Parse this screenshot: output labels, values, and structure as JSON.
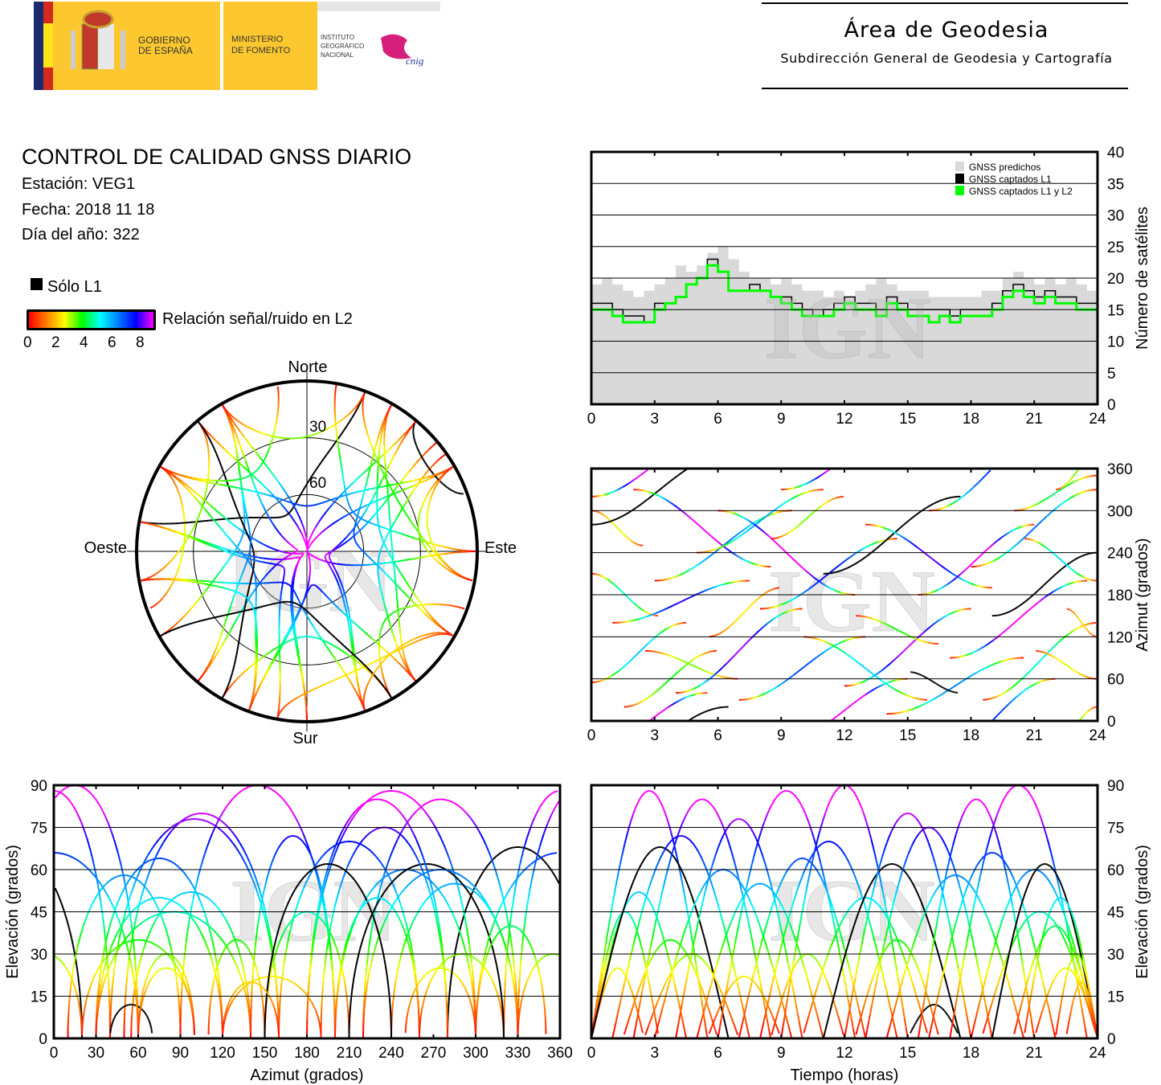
{
  "header": {
    "logo": {
      "gov_line1": "GOBIERNO",
      "gov_line2": "DE ESPAÑA",
      "min_line1": "MINISTERIO",
      "min_line2": "DE FOMENTO",
      "ign_line1": "INSTITUTO",
      "ign_line2": "GEOGRÁFICO",
      "ign_line3": "NACIONAL",
      "cnig": "cnig"
    },
    "area_title": "Área de Geodesia",
    "area_subtitle": "Subdirección General de Geodesia y Cartografía"
  },
  "report": {
    "title": "CONTROL DE CALIDAD GNSS DIARIO",
    "station": "Estación: VEG1",
    "date": "Fecha: 2018 11 18",
    "doy": "Día del año: 322",
    "l1_only_label": "Sólo L1",
    "snr_label": "Relación señal/ruido en L2",
    "snr_ticks": [
      "0",
      "2",
      "4",
      "6",
      "8"
    ],
    "colors": {
      "l1_only": "#000000",
      "snr_scale": [
        "#ff0000",
        "#ff8000",
        "#ffff00",
        "#00ff00",
        "#00ffff",
        "#0080ff",
        "#0000ff",
        "#ff00ff"
      ]
    }
  },
  "watermark": "IGN",
  "chart_data": [
    {
      "id": "satellite-count",
      "type": "area",
      "ylabel": "Número de satélites",
      "ylim": [
        0,
        40
      ],
      "xlim": [
        0,
        24
      ],
      "yticks": [
        "0",
        "5",
        "10",
        "15",
        "20",
        "25",
        "30",
        "35",
        "40"
      ],
      "xticks": [
        "0",
        "3",
        "6",
        "9",
        "12",
        "15",
        "18",
        "21",
        "24"
      ],
      "grid": true,
      "legend": "top-right",
      "x_step_hours": 0.5,
      "series": [
        {
          "name": "GNSS predichos",
          "color": "#d9d9d9",
          "values": [
            19,
            20,
            19,
            18,
            17,
            18,
            19,
            20,
            22,
            21,
            22,
            24,
            25,
            23,
            21,
            20,
            20,
            19,
            20,
            19,
            18,
            18,
            17,
            18,
            17,
            18,
            19,
            20,
            19,
            18,
            18,
            18,
            17,
            17,
            17,
            17,
            17,
            18,
            18,
            20,
            21,
            20,
            19,
            20,
            19,
            20,
            19,
            18,
            18
          ]
        },
        {
          "name": "GNSS captados L1",
          "color": "#000000",
          "values": [
            16,
            16,
            15,
            14,
            14,
            13,
            16,
            16,
            17,
            19,
            20,
            23,
            21,
            18,
            18,
            19,
            18,
            17,
            17,
            16,
            15,
            14,
            15,
            16,
            17,
            16,
            16,
            15,
            17,
            16,
            15,
            15,
            15,
            15,
            14,
            15,
            15,
            15,
            16,
            18,
            19,
            18,
            17,
            18,
            17,
            17,
            16,
            16,
            16
          ]
        },
        {
          "name": "GNSS captados L1 y L2",
          "color": "#00ff00",
          "values": [
            15,
            15,
            14,
            13,
            13,
            13,
            15,
            16,
            17,
            19,
            20,
            22,
            21,
            18,
            18,
            18,
            18,
            17,
            16,
            15,
            14,
            14,
            14,
            15,
            16,
            15,
            15,
            14,
            16,
            15,
            14,
            14,
            13,
            14,
            13,
            14,
            14,
            14,
            15,
            17,
            18,
            17,
            16,
            17,
            16,
            16,
            15,
            15,
            15
          ]
        }
      ]
    },
    {
      "id": "azimuth-vs-time",
      "type": "scatter",
      "ylabel": "Azimut (grados)",
      "ylim": [
        0,
        360
      ],
      "xlim": [
        0,
        24
      ],
      "yticks": [
        "0",
        "60",
        "120",
        "180",
        "240",
        "300",
        "360"
      ],
      "xticks": [
        "0",
        "3",
        "6",
        "9",
        "12",
        "15",
        "18",
        "21",
        "24"
      ],
      "grid": true
    },
    {
      "id": "skyplot",
      "type": "scatter",
      "directions": {
        "north": "Norte",
        "south": "Sur",
        "east": "Este",
        "west": "Oeste"
      },
      "elevation_rings": [
        "30",
        "60"
      ]
    },
    {
      "id": "elevation-vs-azimuth",
      "type": "scatter",
      "xlabel": "Azimut (grados)",
      "ylabel": "Elevación (grados)",
      "xlim": [
        0,
        360
      ],
      "ylim": [
        0,
        90
      ],
      "xticks": [
        "0",
        "30",
        "60",
        "90",
        "120",
        "150",
        "180",
        "210",
        "240",
        "270",
        "300",
        "330",
        "360"
      ],
      "yticks": [
        "0",
        "15",
        "30",
        "45",
        "60",
        "75",
        "90"
      ],
      "grid": true
    },
    {
      "id": "elevation-vs-time",
      "type": "scatter",
      "xlabel": "Tiempo (horas)",
      "ylabel": "Elevación (grados)",
      "xlim": [
        0,
        24
      ],
      "ylim": [
        0,
        90
      ],
      "xticks": [
        "0",
        "3",
        "6",
        "9",
        "12",
        "15",
        "18",
        "21",
        "24"
      ],
      "yticks": [
        "0",
        "15",
        "30",
        "45",
        "60",
        "75",
        "90"
      ],
      "grid": true
    }
  ],
  "passes_fields": [
    "start_hour",
    "end_hour",
    "az_start",
    "az_end",
    "max_elevation",
    "l1_only"
  ],
  "passes": [
    [
      0,
      5.5,
      320,
      40,
      88,
      0
    ],
    [
      0,
      3.2,
      210,
      150,
      45,
      0
    ],
    [
      0,
      4.5,
      55,
      140,
      52,
      0
    ],
    [
      0,
      2.5,
      300,
      250,
      25,
      0
    ],
    [
      0,
      6.5,
      280,
      20,
      68,
      1
    ],
    [
      1,
      7.5,
      140,
      200,
      72,
      0
    ],
    [
      1.5,
      6,
      20,
      100,
      35,
      0
    ],
    [
      2,
      8.5,
      330,
      220,
      85,
      0
    ],
    [
      2.5,
      7,
      100,
      60,
      30,
      0
    ],
    [
      3,
      9.5,
      200,
      300,
      60,
      0
    ],
    [
      4,
      10,
      40,
      160,
      78,
      0
    ],
    [
      5,
      11,
      240,
      330,
      55,
      0
    ],
    [
      5.5,
      9,
      120,
      190,
      22,
      0
    ],
    [
      6,
      12.5,
      300,
      180,
      88,
      0
    ],
    [
      7,
      13,
      30,
      120,
      64,
      0
    ],
    [
      8,
      14.5,
      160,
      260,
      70,
      0
    ],
    [
      8.5,
      12,
      260,
      320,
      30,
      0
    ],
    [
      9,
      15,
      330,
      60,
      90,
      0
    ],
    [
      10,
      16,
      120,
      30,
      50,
      0
    ],
    [
      11,
      17.5,
      210,
      320,
      62,
      1
    ],
    [
      12,
      18,
      50,
      160,
      80,
      0
    ],
    [
      12.5,
      16.5,
      150,
      110,
      35,
      0
    ],
    [
      13,
      19,
      280,
      190,
      75,
      0
    ],
    [
      14,
      20.5,
      10,
      90,
      58,
      0
    ],
    [
      15,
      17.5,
      70,
      40,
      12,
      1
    ],
    [
      15.5,
      21,
      180,
      280,
      85,
      0
    ],
    [
      16,
      22,
      300,
      60,
      66,
      0
    ],
    [
      17,
      23.5,
      90,
      200,
      90,
      0
    ],
    [
      18,
      24,
      220,
      330,
      60,
      0
    ],
    [
      18.5,
      24,
      30,
      140,
      45,
      0
    ],
    [
      19,
      24,
      150,
      240,
      62,
      1
    ],
    [
      20,
      24,
      300,
      350,
      40,
      0
    ],
    [
      20.5,
      24,
      260,
      200,
      50,
      0
    ],
    [
      21,
      24,
      100,
      60,
      25,
      0
    ],
    [
      22,
      24,
      330,
      20,
      30,
      0
    ],
    [
      22.5,
      24,
      160,
      120,
      20,
      0
    ]
  ]
}
